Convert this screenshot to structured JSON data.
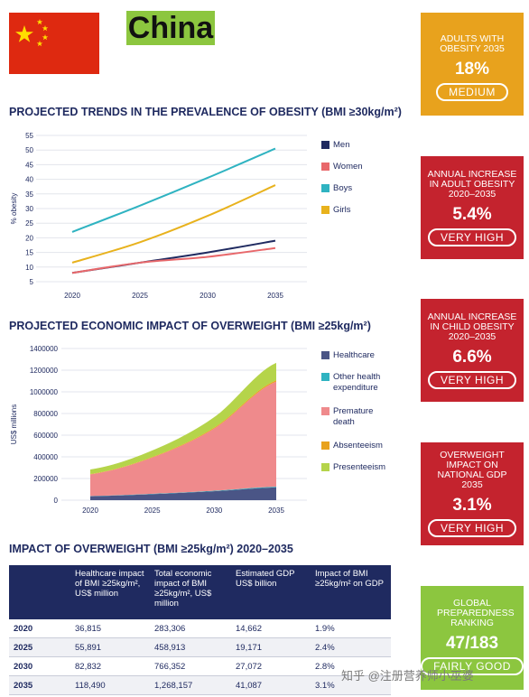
{
  "header": {
    "country": "China"
  },
  "colors": {
    "navy": "#1f2a60",
    "orange": "#e8a21d",
    "red": "#c4232e",
    "green": "#8cc63f"
  },
  "sections": {
    "obesity_title": "PROJECTED TRENDS IN THE PREVALENCE OF OBESITY (BMI ≥30kg/m²)",
    "economic_title": "PROJECTED ECONOMIC IMPACT OF OVERWEIGHT (BMI ≥25kg/m²)",
    "table_title": "IMPACT OF OVERWEIGHT (BMI ≥25kg/m²) 2020–2035"
  },
  "stat_boxes": [
    {
      "label": "ADULTS WITH OBESITY 2035",
      "value": "18%",
      "rating": "MEDIUM",
      "color": "orange"
    },
    {
      "label": "ANNUAL INCREASE IN ADULT OBESITY 2020–2035",
      "value": "5.4%",
      "rating": "VERY HIGH",
      "color": "red"
    },
    {
      "label": "ANNUAL INCREASE IN CHILD OBESITY 2020–2035",
      "value": "6.6%",
      "rating": "VERY HIGH",
      "color": "red"
    },
    {
      "label": "OVERWEIGHT IMPACT ON NATIONAL GDP 2035",
      "value": "3.1%",
      "rating": "VERY HIGH",
      "color": "red"
    },
    {
      "label": "GLOBAL PREPAREDNESS RANKING",
      "value": "47/183",
      "rating": "FAIRLY GOOD",
      "color": "green"
    }
  ],
  "chart_data": [
    {
      "type": "line",
      "ylabel": "% obesity",
      "x": [
        2020,
        2025,
        2030,
        2035
      ],
      "ylim": [
        5,
        55
      ],
      "yticks": [
        5,
        10,
        15,
        20,
        25,
        30,
        35,
        40,
        45,
        50,
        55
      ],
      "grid": true,
      "legend_position": "right",
      "series": [
        {
          "name": "Men",
          "color": "#1f2a60",
          "values": [
            8,
            11.5,
            15,
            19
          ]
        },
        {
          "name": "Women",
          "color": "#e8686b",
          "values": [
            8,
            11.5,
            13.5,
            16.5
          ]
        },
        {
          "name": "Boys",
          "color": "#2fb3c1",
          "values": [
            22,
            31,
            40.5,
            50.5
          ]
        },
        {
          "name": "Girls",
          "color": "#e8b21d",
          "values": [
            11.5,
            18.5,
            27.5,
            38
          ]
        }
      ]
    },
    {
      "type": "area",
      "ylabel": "US$ millions",
      "x": [
        2020,
        2025,
        2030,
        2035
      ],
      "ylim": [
        0,
        1400000
      ],
      "yticks": [
        0,
        200000,
        400000,
        600000,
        800000,
        1000000,
        1200000,
        1400000
      ],
      "legend_position": "right",
      "stacked": true,
      "series": [
        {
          "name": "Healthcare",
          "color": "#4a5586",
          "values": [
            36815,
            55891,
            82832,
            118490
          ]
        },
        {
          "name": "Other health expenditure",
          "color": "#2fb3c1",
          "values": [
            2000,
            3000,
            4500,
            6500
          ]
        },
        {
          "name": "Premature death",
          "color": "#ef8a8c",
          "values": [
            200000,
            335000,
            575000,
            970000
          ]
        },
        {
          "name": "Absenteeism",
          "color": "#e8a21d",
          "values": [
            3000,
            5000,
            8000,
            12000
          ]
        },
        {
          "name": "Presenteeism",
          "color": "#b5d44a",
          "values": [
            41491,
            60022,
            96020,
            161167
          ]
        }
      ]
    },
    {
      "type": "table",
      "columns": [
        "",
        "Healthcare impact of BMI ≥25kg/m², US$ million",
        "Total economic impact of BMI ≥25kg/m², US$ million",
        "Estimated GDP US$ billion",
        "Impact of BMI ≥25kg/m² on GDP"
      ],
      "rows": [
        [
          "2020",
          "36,815",
          "283,306",
          "14,662",
          "1.9%"
        ],
        [
          "2025",
          "55,891",
          "458,913",
          "19,171",
          "2.4%"
        ],
        [
          "2030",
          "82,832",
          "766,352",
          "27,072",
          "2.8%"
        ],
        [
          "2035",
          "118,490",
          "1,268,157",
          "41,087",
          "3.1%"
        ]
      ]
    }
  ],
  "watermark": "知乎 @注册营养师小巫婆"
}
